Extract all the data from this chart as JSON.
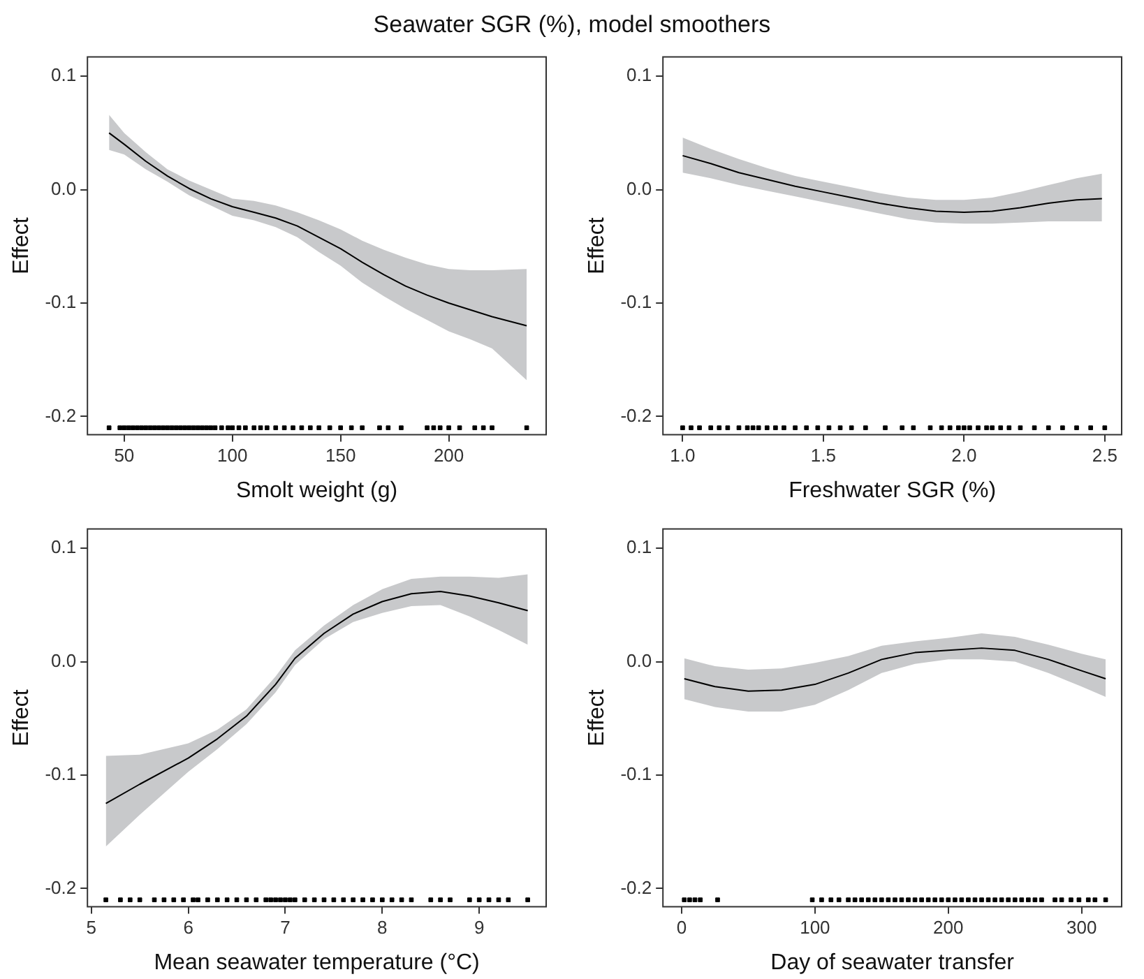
{
  "chart_data": [
    {
      "type": "line",
      "title": "Seawater SGR (%), model smoothers",
      "xlabel": "Smolt weight (g)",
      "ylabel": "Effect",
      "xlim": [
        33,
        245
      ],
      "xticks": [
        50,
        100,
        150,
        200
      ],
      "ylim": [
        -0.216,
        0.117
      ],
      "yticks": [
        {
          "value": -0.2,
          "label": "-0.2"
        },
        {
          "value": -0.1,
          "label": "-0.1"
        },
        {
          "value": 0,
          "label": "0.0"
        },
        {
          "value": 0.1,
          "label": "0.1"
        }
      ],
      "series": [
        {
          "type": "line",
          "color": "#000000",
          "x": [
            43,
            50,
            60,
            70,
            80,
            90,
            100,
            110,
            120,
            130,
            140,
            150,
            160,
            170,
            180,
            190,
            200,
            210,
            220,
            236
          ],
          "values": [
            0.05,
            0.04,
            0.025,
            0.012,
            0.001,
            -0.008,
            -0.015,
            -0.02,
            -0.025,
            -0.032,
            -0.042,
            -0.052,
            -0.064,
            -0.075,
            -0.085,
            -0.093,
            -0.1,
            -0.106,
            -0.112,
            -0.12
          ],
          "lower": [
            0.035,
            0.031,
            0.018,
            0.007,
            -0.005,
            -0.014,
            -0.023,
            -0.027,
            -0.033,
            -0.042,
            -0.055,
            -0.067,
            -0.082,
            -0.094,
            -0.105,
            -0.115,
            -0.125,
            -0.132,
            -0.14,
            -0.168
          ],
          "upper": [
            0.066,
            0.05,
            0.033,
            0.018,
            0.008,
            0.0,
            -0.008,
            -0.01,
            -0.014,
            -0.02,
            -0.027,
            -0.035,
            -0.045,
            -0.053,
            -0.06,
            -0.066,
            -0.07,
            -0.071,
            -0.071,
            -0.07
          ]
        },
        {
          "type": "scatter",
          "color": "#000000",
          "marker": "square",
          "x": [
            43,
            48,
            50,
            52,
            54,
            56,
            58,
            60,
            62,
            64,
            66,
            68,
            70,
            72,
            74,
            76,
            78,
            80,
            82,
            84,
            86,
            88,
            90,
            92,
            95,
            98,
            100,
            103,
            106,
            110,
            113,
            116,
            120,
            124,
            128,
            132,
            136,
            140,
            145,
            150,
            155,
            160,
            168,
            172,
            178,
            190,
            193,
            196,
            200,
            205,
            212,
            216,
            220,
            236
          ],
          "values": [
            -0.21,
            -0.21,
            -0.21,
            -0.21,
            -0.21,
            -0.21,
            -0.21,
            -0.21,
            -0.21,
            -0.21,
            -0.21,
            -0.21,
            -0.21,
            -0.21,
            -0.21,
            -0.21,
            -0.21,
            -0.21,
            -0.21,
            -0.21,
            -0.21,
            -0.21,
            -0.21,
            -0.21,
            -0.21,
            -0.21,
            -0.21,
            -0.21,
            -0.21,
            -0.21,
            -0.21,
            -0.21,
            -0.21,
            -0.21,
            -0.21,
            -0.21,
            -0.21,
            -0.21,
            -0.21,
            -0.21,
            -0.21,
            -0.21,
            -0.21,
            -0.21,
            -0.21,
            -0.21,
            -0.21,
            -0.21,
            -0.21,
            -0.21,
            -0.21,
            -0.21,
            -0.21,
            -0.21
          ]
        }
      ]
    },
    {
      "type": "line",
      "xlabel": "Freshwater SGR (%)",
      "ylabel": "Effect",
      "xlim": [
        0.93,
        2.56
      ],
      "xticks": [
        {
          "value": 1,
          "label": "1.0"
        },
        {
          "value": 1.5,
          "label": "1.5"
        },
        {
          "value": 2,
          "label": "2.0"
        },
        {
          "value": 2.5,
          "label": "2.5"
        }
      ],
      "ylim": [
        -0.216,
        0.117
      ],
      "yticks": [
        {
          "value": -0.2,
          "label": "-0.2"
        },
        {
          "value": -0.1,
          "label": "-0.1"
        },
        {
          "value": 0,
          "label": "0.0"
        },
        {
          "value": 0.1,
          "label": "0.1"
        }
      ],
      "series": [
        {
          "type": "line",
          "color": "#000000",
          "x": [
            1.0,
            1.1,
            1.2,
            1.3,
            1.4,
            1.5,
            1.6,
            1.7,
            1.8,
            1.9,
            2.0,
            2.1,
            2.2,
            2.3,
            2.4,
            2.49
          ],
          "values": [
            0.03,
            0.023,
            0.015,
            0.009,
            0.003,
            -0.002,
            -0.007,
            -0.012,
            -0.016,
            -0.019,
            -0.02,
            -0.019,
            -0.016,
            -0.012,
            -0.009,
            -0.008
          ],
          "lower": [
            0.015,
            0.01,
            0.004,
            -0.001,
            -0.006,
            -0.011,
            -0.016,
            -0.021,
            -0.026,
            -0.029,
            -0.03,
            -0.03,
            -0.029,
            -0.028,
            -0.028,
            -0.028
          ],
          "upper": [
            0.046,
            0.036,
            0.027,
            0.019,
            0.012,
            0.007,
            0.002,
            -0.003,
            -0.007,
            -0.009,
            -0.009,
            -0.007,
            -0.002,
            0.004,
            0.01,
            0.014
          ]
        },
        {
          "type": "scatter",
          "color": "#000000",
          "marker": "square",
          "x": [
            1.0,
            1.03,
            1.06,
            1.1,
            1.13,
            1.16,
            1.2,
            1.23,
            1.25,
            1.27,
            1.3,
            1.33,
            1.36,
            1.4,
            1.44,
            1.48,
            1.52,
            1.56,
            1.6,
            1.65,
            1.72,
            1.78,
            1.82,
            1.88,
            1.92,
            1.95,
            1.98,
            2.0,
            2.02,
            2.05,
            2.08,
            2.1,
            2.13,
            2.16,
            2.2,
            2.25,
            2.3,
            2.35,
            2.4,
            2.45,
            2.5
          ],
          "values": [
            -0.21,
            -0.21,
            -0.21,
            -0.21,
            -0.21,
            -0.21,
            -0.21,
            -0.21,
            -0.21,
            -0.21,
            -0.21,
            -0.21,
            -0.21,
            -0.21,
            -0.21,
            -0.21,
            -0.21,
            -0.21,
            -0.21,
            -0.21,
            -0.21,
            -0.21,
            -0.21,
            -0.21,
            -0.21,
            -0.21,
            -0.21,
            -0.21,
            -0.21,
            -0.21,
            -0.21,
            -0.21,
            -0.21,
            -0.21,
            -0.21,
            -0.21,
            -0.21,
            -0.21,
            -0.21,
            -0.21,
            -0.21
          ]
        }
      ]
    },
    {
      "type": "line",
      "xlabel": "Mean seawater temperature (°C)",
      "ylabel": "Effect",
      "xlim": [
        4.96,
        9.69
      ],
      "xticks": [
        5,
        6,
        7,
        8,
        9
      ],
      "ylim": [
        -0.216,
        0.117
      ],
      "yticks": [
        {
          "value": -0.2,
          "label": "-0.2"
        },
        {
          "value": -0.1,
          "label": "-0.1"
        },
        {
          "value": 0,
          "label": "0.0"
        },
        {
          "value": 0.1,
          "label": "0.1"
        }
      ],
      "series": [
        {
          "type": "line",
          "color": "#000000",
          "x": [
            5.15,
            5.5,
            6.0,
            6.3,
            6.6,
            6.9,
            7.1,
            7.4,
            7.7,
            8.0,
            8.3,
            8.6,
            8.9,
            9.2,
            9.5
          ],
          "values": [
            -0.125,
            -0.108,
            -0.085,
            -0.068,
            -0.048,
            -0.02,
            0.003,
            0.025,
            0.042,
            0.053,
            0.06,
            0.062,
            0.058,
            0.052,
            0.045
          ],
          "lower": [
            -0.163,
            -0.135,
            -0.097,
            -0.077,
            -0.055,
            -0.027,
            -0.003,
            0.02,
            0.035,
            0.043,
            0.049,
            0.05,
            0.04,
            0.028,
            0.015
          ],
          "upper": [
            -0.083,
            -0.082,
            -0.072,
            -0.06,
            -0.042,
            -0.013,
            0.01,
            0.032,
            0.05,
            0.064,
            0.073,
            0.075,
            0.075,
            0.074,
            0.077
          ]
        },
        {
          "type": "scatter",
          "color": "#000000",
          "marker": "square",
          "x": [
            5.15,
            5.3,
            5.4,
            5.5,
            5.65,
            5.75,
            5.85,
            5.95,
            6.05,
            6.1,
            6.2,
            6.3,
            6.4,
            6.5,
            6.6,
            6.7,
            6.8,
            6.85,
            6.9,
            6.95,
            7.0,
            7.05,
            7.1,
            7.2,
            7.3,
            7.4,
            7.5,
            7.6,
            7.7,
            7.8,
            7.9,
            8.0,
            8.1,
            8.2,
            8.3,
            8.5,
            8.6,
            8.7,
            8.9,
            9.0,
            9.1,
            9.2,
            9.3,
            9.5
          ],
          "values": [
            -0.21,
            -0.21,
            -0.21,
            -0.21,
            -0.21,
            -0.21,
            -0.21,
            -0.21,
            -0.21,
            -0.21,
            -0.21,
            -0.21,
            -0.21,
            -0.21,
            -0.21,
            -0.21,
            -0.21,
            -0.21,
            -0.21,
            -0.21,
            -0.21,
            -0.21,
            -0.21,
            -0.21,
            -0.21,
            -0.21,
            -0.21,
            -0.21,
            -0.21,
            -0.21,
            -0.21,
            -0.21,
            -0.21,
            -0.21,
            -0.21,
            -0.21,
            -0.21,
            -0.21,
            -0.21,
            -0.21,
            -0.21,
            -0.21,
            -0.21,
            -0.21
          ]
        }
      ]
    },
    {
      "type": "line",
      "xlabel": "Day of seawater transfer",
      "ylabel": "Effect",
      "xlim": [
        -14,
        330
      ],
      "xticks": [
        0,
        100,
        200,
        300
      ],
      "ylim": [
        -0.216,
        0.117
      ],
      "yticks": [
        {
          "value": -0.2,
          "label": "-0.2"
        },
        {
          "value": -0.1,
          "label": "-0.1"
        },
        {
          "value": 0,
          "label": "0.0"
        },
        {
          "value": 0.1,
          "label": "0.1"
        }
      ],
      "series": [
        {
          "type": "line",
          "color": "#000000",
          "x": [
            2,
            25,
            50,
            75,
            100,
            125,
            150,
            175,
            200,
            225,
            250,
            275,
            300,
            318
          ],
          "values": [
            -0.015,
            -0.022,
            -0.026,
            -0.025,
            -0.02,
            -0.01,
            0.002,
            0.008,
            0.01,
            0.012,
            0.01,
            0.002,
            -0.008,
            -0.015
          ],
          "lower": [
            -0.033,
            -0.04,
            -0.044,
            -0.044,
            -0.038,
            -0.025,
            -0.01,
            -0.002,
            0.002,
            0.002,
            0.0,
            -0.01,
            -0.022,
            -0.031
          ],
          "upper": [
            0.003,
            -0.004,
            -0.007,
            -0.006,
            -0.001,
            0.005,
            0.014,
            0.018,
            0.021,
            0.025,
            0.022,
            0.015,
            0.007,
            0.002
          ]
        },
        {
          "type": "scatter",
          "color": "#000000",
          "marker": "square",
          "x": [
            2,
            6,
            10,
            14,
            27,
            98,
            105,
            112,
            118,
            125,
            130,
            135,
            140,
            145,
            150,
            155,
            160,
            165,
            170,
            175,
            180,
            185,
            190,
            195,
            200,
            205,
            210,
            215,
            220,
            225,
            230,
            235,
            240,
            245,
            250,
            255,
            260,
            265,
            270,
            280,
            285,
            292,
            298,
            305,
            310,
            318
          ],
          "values": [
            -0.21,
            -0.21,
            -0.21,
            -0.21,
            -0.21,
            -0.21,
            -0.21,
            -0.21,
            -0.21,
            -0.21,
            -0.21,
            -0.21,
            -0.21,
            -0.21,
            -0.21,
            -0.21,
            -0.21,
            -0.21,
            -0.21,
            -0.21,
            -0.21,
            -0.21,
            -0.21,
            -0.21,
            -0.21,
            -0.21,
            -0.21,
            -0.21,
            -0.21,
            -0.21,
            -0.21,
            -0.21,
            -0.21,
            -0.21,
            -0.21,
            -0.21,
            -0.21,
            -0.21,
            -0.21,
            -0.21,
            -0.21,
            -0.21,
            -0.21,
            -0.21,
            -0.21,
            -0.21
          ]
        }
      ]
    }
  ]
}
